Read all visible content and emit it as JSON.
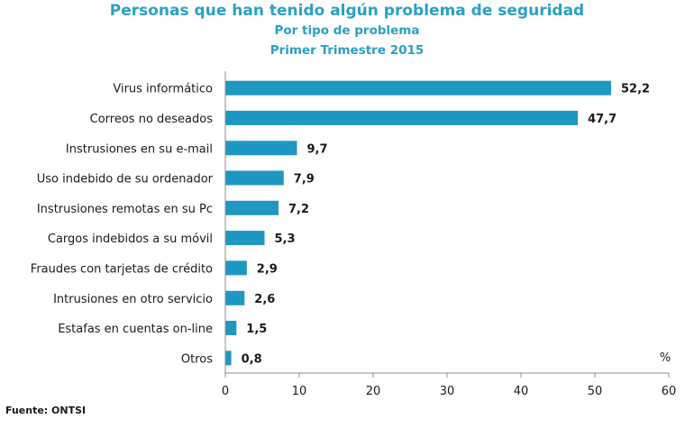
{
  "chart_data": {
    "type": "bar",
    "orientation": "horizontal",
    "title": "Personas que han tenido algún problema de seguridad",
    "subtitle": "Por tipo de problema",
    "subtitle2": "Primer Trimestre 2015",
    "categories": [
      "Virus informático",
      "Correos no deseados",
      "Instrusiones en su e-mail",
      "Uso indebido de su ordenador",
      "Instrusiones remotas en su Pc",
      "Cargos indebidos a su móvil",
      "Fraudes con tarjetas de crédito",
      "Intrusiones en otro servicio",
      "Estafas en cuentas on-line",
      "Otros"
    ],
    "values": [
      52.2,
      47.7,
      9.7,
      7.9,
      7.2,
      5.3,
      2.9,
      2.6,
      1.5,
      0.8
    ],
    "value_labels": [
      "52,2",
      "47,7",
      "9,7",
      "7,9",
      "7,2",
      "5,3",
      "2,9",
      "2,6",
      "1,5",
      "0,8"
    ],
    "xlim": [
      0,
      60
    ],
    "xticks": [
      0,
      10,
      20,
      30,
      40,
      50,
      60
    ],
    "unit_label": "%",
    "grid": false,
    "bar_color": "#1e97c2",
    "source": "Fuente: ONTSI"
  }
}
